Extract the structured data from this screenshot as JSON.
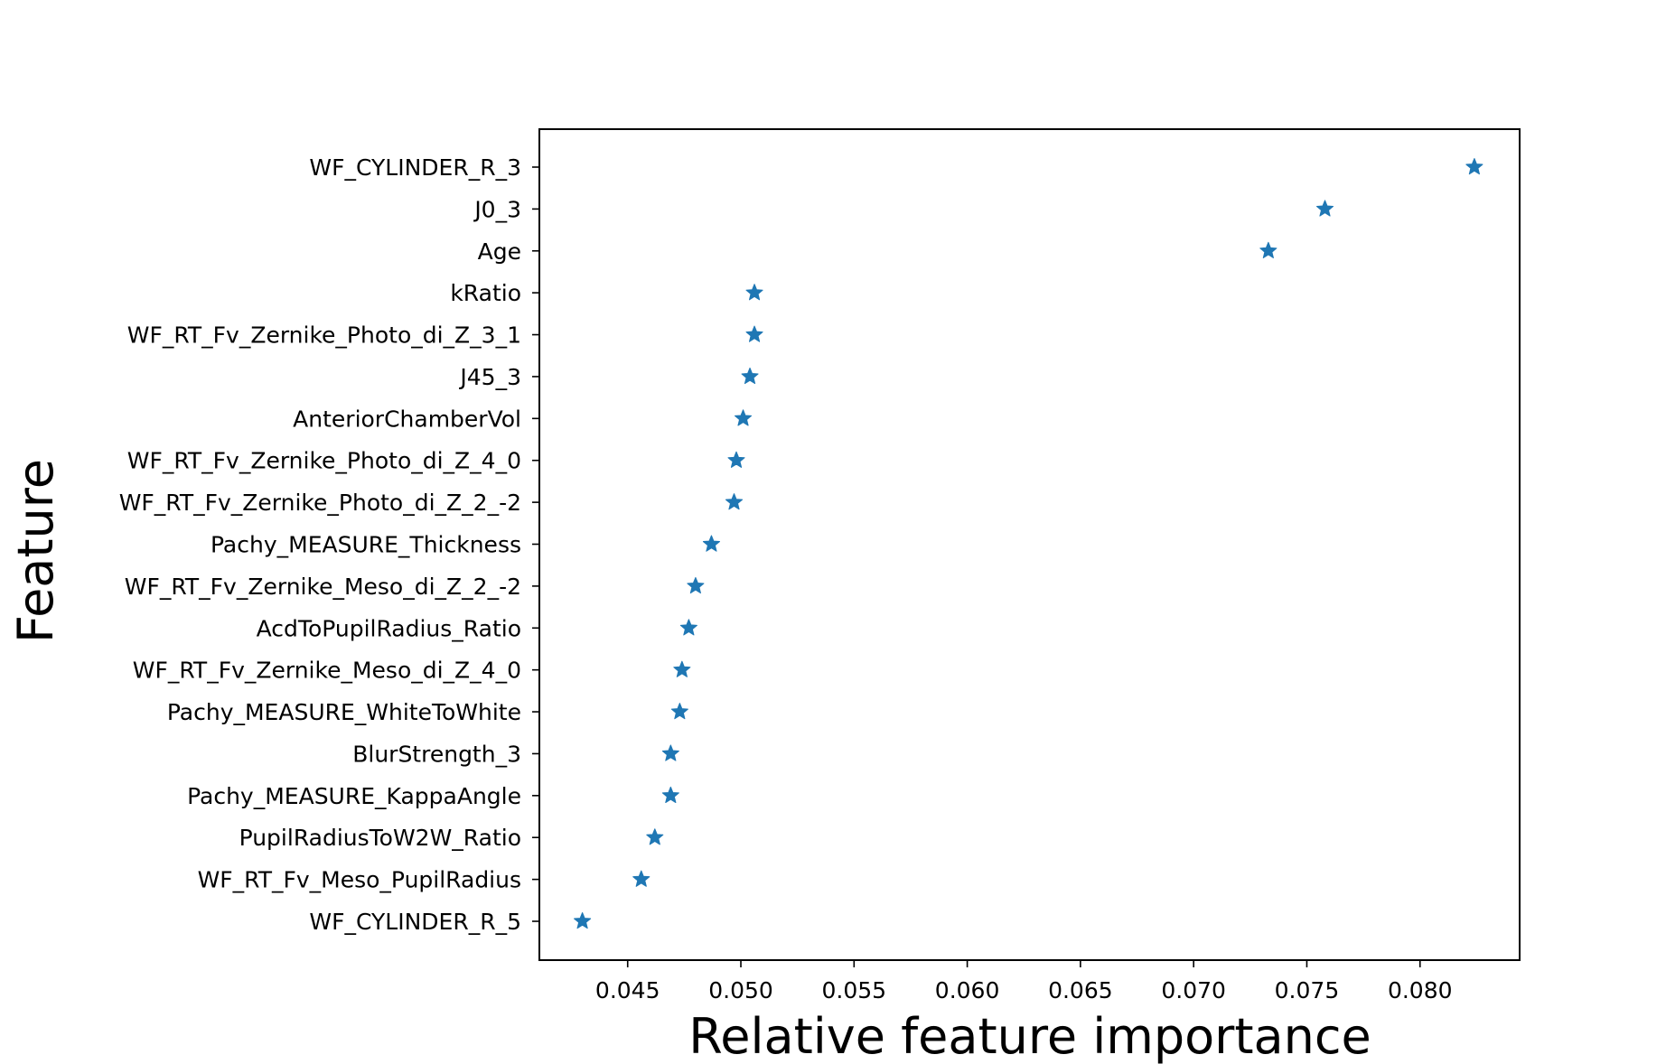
{
  "colors": {
    "marker": "#1f77b4",
    "axes": "#000000",
    "background": "#ffffff"
  },
  "chart_data": {
    "type": "scatter",
    "marker": "star",
    "xlabel": "Relative feature importance",
    "ylabel": "Feature",
    "xlim": [
      0.0411,
      0.0844
    ],
    "xticks": [
      0.045,
      0.05,
      0.055,
      0.06,
      0.065,
      0.07,
      0.075,
      0.08
    ],
    "xtick_labels": [
      "0.045",
      "0.050",
      "0.055",
      "0.060",
      "0.065",
      "0.070",
      "0.075",
      "0.080"
    ],
    "grid": false,
    "legend": false,
    "categories": [
      "WF_CYLINDER_R_3",
      "J0_3",
      "Age",
      "kRatio",
      "WF_RT_Fv_Zernike_Photo_di_Z_3_1",
      "J45_3",
      "AnteriorChamberVol",
      "WF_RT_Fv_Zernike_Photo_di_Z_4_0",
      "WF_RT_Fv_Zernike_Photo_di_Z_2_-2",
      "Pachy_MEASURE_Thickness",
      "WF_RT_Fv_Zernike_Meso_di_Z_2_-2",
      "AcdToPupilRadius_Ratio",
      "WF_RT_Fv_Zernike_Meso_di_Z_4_0",
      "Pachy_MEASURE_WhiteToWhite",
      "BlurStrength_3",
      "Pachy_MEASURE_KappaAngle",
      "PupilRadiusToW2W_Ratio",
      "WF_RT_Fv_Meso_PupilRadius",
      "WF_CYLINDER_R_5"
    ],
    "values": [
      0.0824,
      0.0758,
      0.0733,
      0.0506,
      0.0506,
      0.0504,
      0.0501,
      0.0498,
      0.0497,
      0.0487,
      0.048,
      0.0477,
      0.0474,
      0.0473,
      0.0469,
      0.0469,
      0.0462,
      0.0456,
      0.043
    ]
  }
}
